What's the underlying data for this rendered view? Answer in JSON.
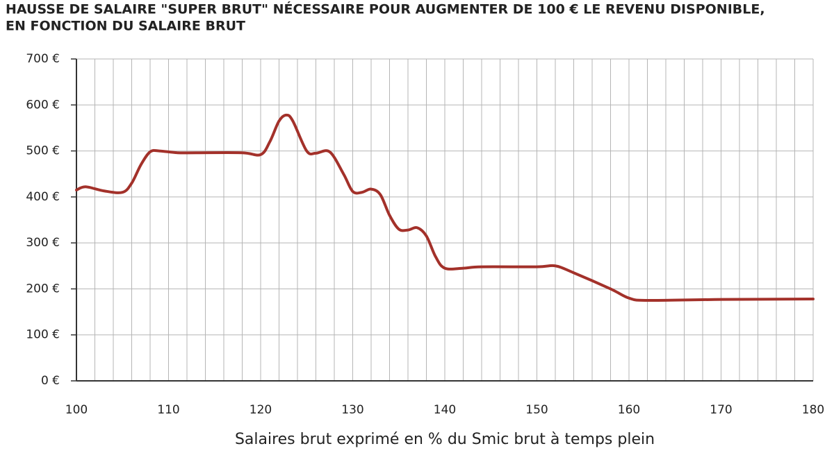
{
  "chart_data": {
    "type": "line",
    "title": [
      "HAUSSE DE SALAIRE \"SUPER BRUT\" NÉCESSAIRE POUR AUGMENTER DE 100 € LE REVENU DISPONIBLE,",
      "EN FONCTION DU SALAIRE BRUT"
    ],
    "x_label": "Salaires brut exprimé en % du Smic brut à temps plein",
    "x": [
      100,
      101,
      103,
      105,
      106,
      107,
      108,
      109,
      111,
      113,
      118,
      120,
      121,
      122,
      122.8,
      123.5,
      125,
      126,
      127.5,
      129,
      130,
      131,
      132,
      133,
      134,
      135,
      136,
      137,
      138,
      139,
      140,
      142,
      144,
      150,
      152,
      154,
      158,
      160,
      162,
      170,
      180
    ],
    "series": [
      {
        "color": "#a3312a",
        "values": [
          415,
          422,
          413,
          410,
          430,
          470,
          498,
          500,
          496,
          496,
          496,
          492,
          520,
          565,
          578,
          565,
          500,
          495,
          498,
          450,
          412,
          410,
          417,
          405,
          360,
          330,
          328,
          333,
          315,
          270,
          245,
          245,
          248,
          248,
          250,
          235,
          200,
          180,
          175,
          177,
          178
        ]
      }
    ],
    "xlim": [
      100,
      180
    ],
    "xticks": [
      100,
      110,
      120,
      130,
      140,
      150,
      160,
      170,
      180
    ],
    "x_gridlines": [
      100,
      102,
      104,
      106,
      108,
      110,
      112,
      114,
      116,
      118,
      120,
      122,
      124,
      126,
      128,
      130,
      132,
      134,
      136,
      138,
      140,
      142,
      144,
      146,
      148,
      150,
      152,
      154,
      156,
      158,
      160,
      162,
      164,
      166,
      168,
      170,
      172,
      174,
      176,
      178,
      180
    ],
    "ylim": [
      0,
      700
    ],
    "yticks": [
      {
        "value": 0,
        "label": "0 €"
      },
      {
        "value": 100,
        "label": "100 €"
      },
      {
        "value": 200,
        "label": "200 €"
      },
      {
        "value": 300,
        "label": "300 €"
      },
      {
        "value": 400,
        "label": "400 €"
      },
      {
        "value": 500,
        "label": "500 €"
      },
      {
        "value": 600,
        "label": "600 €"
      },
      {
        "value": 700,
        "label": "700 €"
      }
    ],
    "grid": true,
    "title_color": "#e8533a"
  }
}
